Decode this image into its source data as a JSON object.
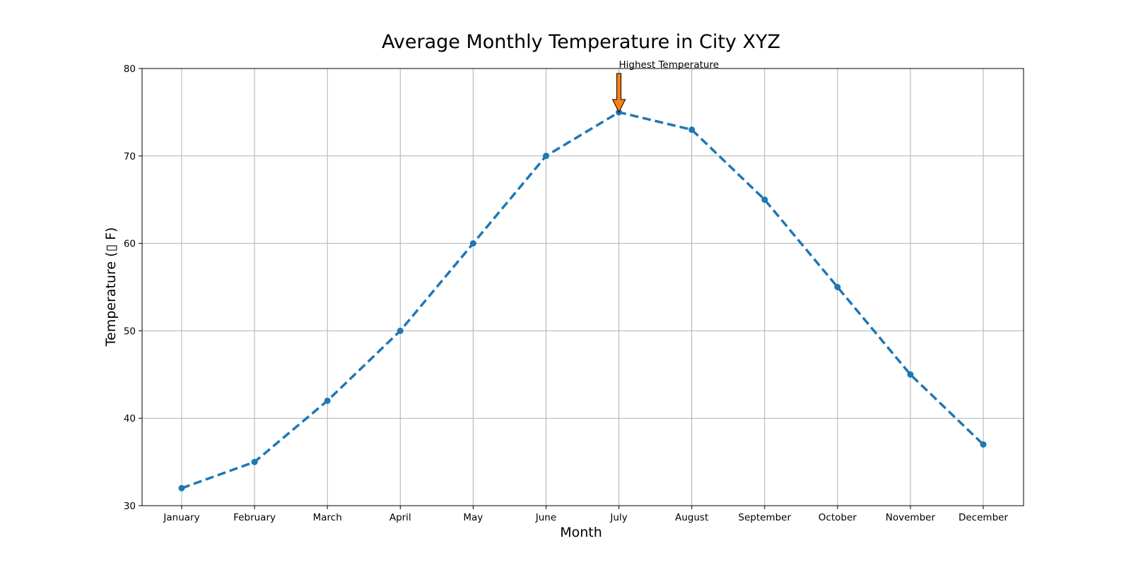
{
  "chart_data": {
    "type": "line",
    "title": "Average Monthly Temperature in City XYZ",
    "xlabel": "Month",
    "ylabel": "Temperature (▯ F)",
    "categories": [
      "January",
      "February",
      "March",
      "April",
      "May",
      "June",
      "July",
      "August",
      "September",
      "October",
      "November",
      "December"
    ],
    "series": [
      {
        "values": [
          32,
          35,
          42,
          50,
          60,
          70,
          75,
          73,
          65,
          55,
          45,
          37
        ],
        "color": "#1f77b4",
        "line_style": "dashed",
        "marker": "circle"
      }
    ],
    "ylim": [
      30,
      80
    ],
    "yticks": [
      30,
      40,
      50,
      60,
      70,
      80
    ],
    "grid": true,
    "annotation": {
      "text": "Highest Temperature",
      "category": "July",
      "value": 75,
      "arrow_color": "#ff7f0e"
    }
  }
}
